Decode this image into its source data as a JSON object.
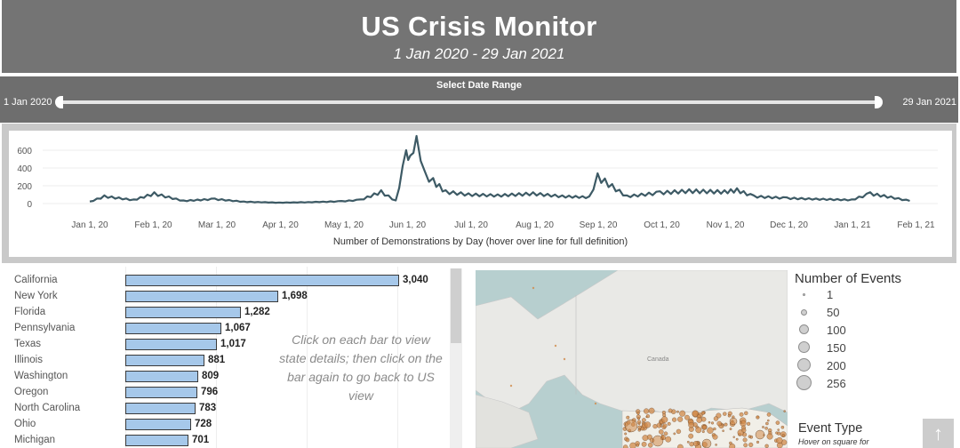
{
  "header": {
    "title": "US Crisis Monitor",
    "subtitle": "1 Jan 2020 - 29 Jan 2021"
  },
  "date_range": {
    "label": "Select Date Range",
    "start": "1 Jan 2020",
    "end": "29 Jan 2021"
  },
  "timeline": {
    "y_ticks": [
      "600",
      "400",
      "200",
      "0"
    ],
    "x_ticks": [
      "Jan 1, 20",
      "Feb 1, 20",
      "Mar 1, 20",
      "Apr 1, 20",
      "May 1, 20",
      "Jun 1, 20",
      "Jul 1, 20",
      "Aug 1, 20",
      "Sep 1, 20",
      "Oct 1, 20",
      "Nov 1, 20",
      "Dec 1, 20",
      "Jan 1, 21",
      "Feb 1, 21"
    ],
    "caption": "Number of Demonstrations by Day (hover over line for full definition)",
    "line_color": "#3d5a65"
  },
  "chart_data": {
    "type": "line",
    "title": "Number of Demonstrations by Day",
    "xlabel": "",
    "ylabel": "",
    "ylim": [
      0,
      700
    ],
    "x": [
      "Jan 1, 20",
      "Jan 8, 20",
      "Jan 15, 20",
      "Jan 22, 20",
      "Feb 1, 20",
      "Feb 15, 20",
      "Mar 1, 20",
      "Mar 15, 20",
      "Apr 1, 20",
      "Apr 15, 20",
      "May 1, 20",
      "May 10, 20",
      "May 20, 20",
      "May 27, 20",
      "Jun 1, 20",
      "Jun 3, 20",
      "Jun 6, 20",
      "Jun 10, 20",
      "Jun 14, 20",
      "Jun 20, 20",
      "Jul 1, 20",
      "Jul 15, 20",
      "Aug 1, 20",
      "Aug 15, 20",
      "Aug 28, 20",
      "Sep 1, 20",
      "Sep 15, 20",
      "Oct 1, 20",
      "Oct 15, 20",
      "Nov 1, 20",
      "Nov 7, 20",
      "Nov 15, 20",
      "Dec 1, 20",
      "Dec 15, 20",
      "Jan 1, 21",
      "Jan 10, 21",
      "Jan 20, 21",
      "Jan 29, 21"
    ],
    "series": [
      {
        "name": "Demonstrations",
        "values": [
          20,
          80,
          60,
          40,
          110,
          30,
          50,
          20,
          10,
          15,
          25,
          40,
          130,
          30,
          560,
          500,
          720,
          320,
          250,
          130,
          100,
          90,
          110,
          80,
          70,
          300,
          80,
          120,
          140,
          130,
          150,
          80,
          60,
          50,
          40,
          110,
          70,
          30
        ]
      }
    ]
  },
  "states": {
    "items": [
      {
        "name": "California",
        "value": 3040,
        "label": "3,040"
      },
      {
        "name": "New York",
        "value": 1698,
        "label": "1,698"
      },
      {
        "name": "Florida",
        "value": 1282,
        "label": "1,282"
      },
      {
        "name": "Pennsylvania",
        "value": 1067,
        "label": "1,067"
      },
      {
        "name": "Texas",
        "value": 1017,
        "label": "1,017"
      },
      {
        "name": "Illinois",
        "value": 881,
        "label": "881"
      },
      {
        "name": "Washington",
        "value": 809,
        "label": "809"
      },
      {
        "name": "Oregon",
        "value": 796,
        "label": "796"
      },
      {
        "name": "North Carolina",
        "value": 783,
        "label": "783"
      },
      {
        "name": "Ohio",
        "value": 728,
        "label": "728"
      },
      {
        "name": "Michigan",
        "value": 701,
        "label": "701"
      }
    ],
    "max": 3040,
    "bar_color": "#a6c8ea",
    "hint": "Click on each bar to view state details; then click on the bar again to go back to US view"
  },
  "map": {
    "country_label": "Canada",
    "marker_color": "#d08a4a"
  },
  "legend": {
    "title": "Number of Events",
    "sizes": [
      "1",
      "50",
      "100",
      "150",
      "200",
      "256"
    ],
    "event_type_title": "Event Type",
    "event_type_hint": "Hover on square for"
  }
}
